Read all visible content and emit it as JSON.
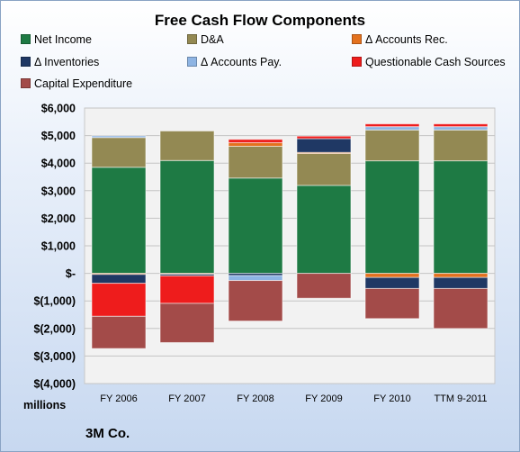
{
  "chart_data": {
    "type": "bar",
    "stacked": true,
    "title": "Free Cash Flow Components",
    "units_label": "millions",
    "company": "3M Co.",
    "categories": [
      "FY 2006",
      "FY 2007",
      "FY 2008",
      "FY 2009",
      "FY 2010",
      "TTM 9-2011"
    ],
    "ylim": [
      -4000,
      6000
    ],
    "yticks": [
      {
        "value": 6000,
        "label": "$6,000"
      },
      {
        "value": 5000,
        "label": "$5,000"
      },
      {
        "value": 4000,
        "label": "$4,000"
      },
      {
        "value": 3000,
        "label": "$3,000"
      },
      {
        "value": 2000,
        "label": "$2,000"
      },
      {
        "value": 1000,
        "label": "$1,000"
      },
      {
        "value": 0,
        "label": "$-"
      },
      {
        "value": -1000,
        "label": "$(1,000)"
      },
      {
        "value": -2000,
        "label": "$(2,000)"
      },
      {
        "value": -3000,
        "label": "$(3,000)"
      },
      {
        "value": -4000,
        "label": "$(4,000)"
      }
    ],
    "grid": true,
    "legend_position": "top",
    "series": [
      {
        "name": "Net Income",
        "color": "#1e7a44",
        "values": [
          3851,
          4096,
          3460,
          3193,
          4085,
          4085
        ]
      },
      {
        "name": "D&A",
        "color": "#938953",
        "values": [
          1079,
          1072,
          1153,
          1157,
          1120,
          1120
        ]
      },
      {
        "name": "Δ Accounts Rec.",
        "color": "#e3711e",
        "values": [
          -40,
          -30,
          130,
          40,
          -150,
          -150
        ]
      },
      {
        "name": "Δ Inventories",
        "color": "#1f3864",
        "values": [
          -320,
          -60,
          -80,
          500,
          -400,
          -400
        ]
      },
      {
        "name": "Δ Accounts Pay.",
        "color": "#8eb4e3",
        "values": [
          60,
          0,
          -180,
          0,
          120,
          120
        ]
      },
      {
        "name": "Questionable Cash Sources",
        "color": "#ee1c1c",
        "values": [
          -1200,
          -1000,
          120,
          90,
          100,
          100
        ]
      },
      {
        "name": "Capital Expenditure",
        "color": "#a34b49",
        "values": [
          -1168,
          -1422,
          -1471,
          -903,
          -1091,
          -1450
        ]
      }
    ]
  }
}
